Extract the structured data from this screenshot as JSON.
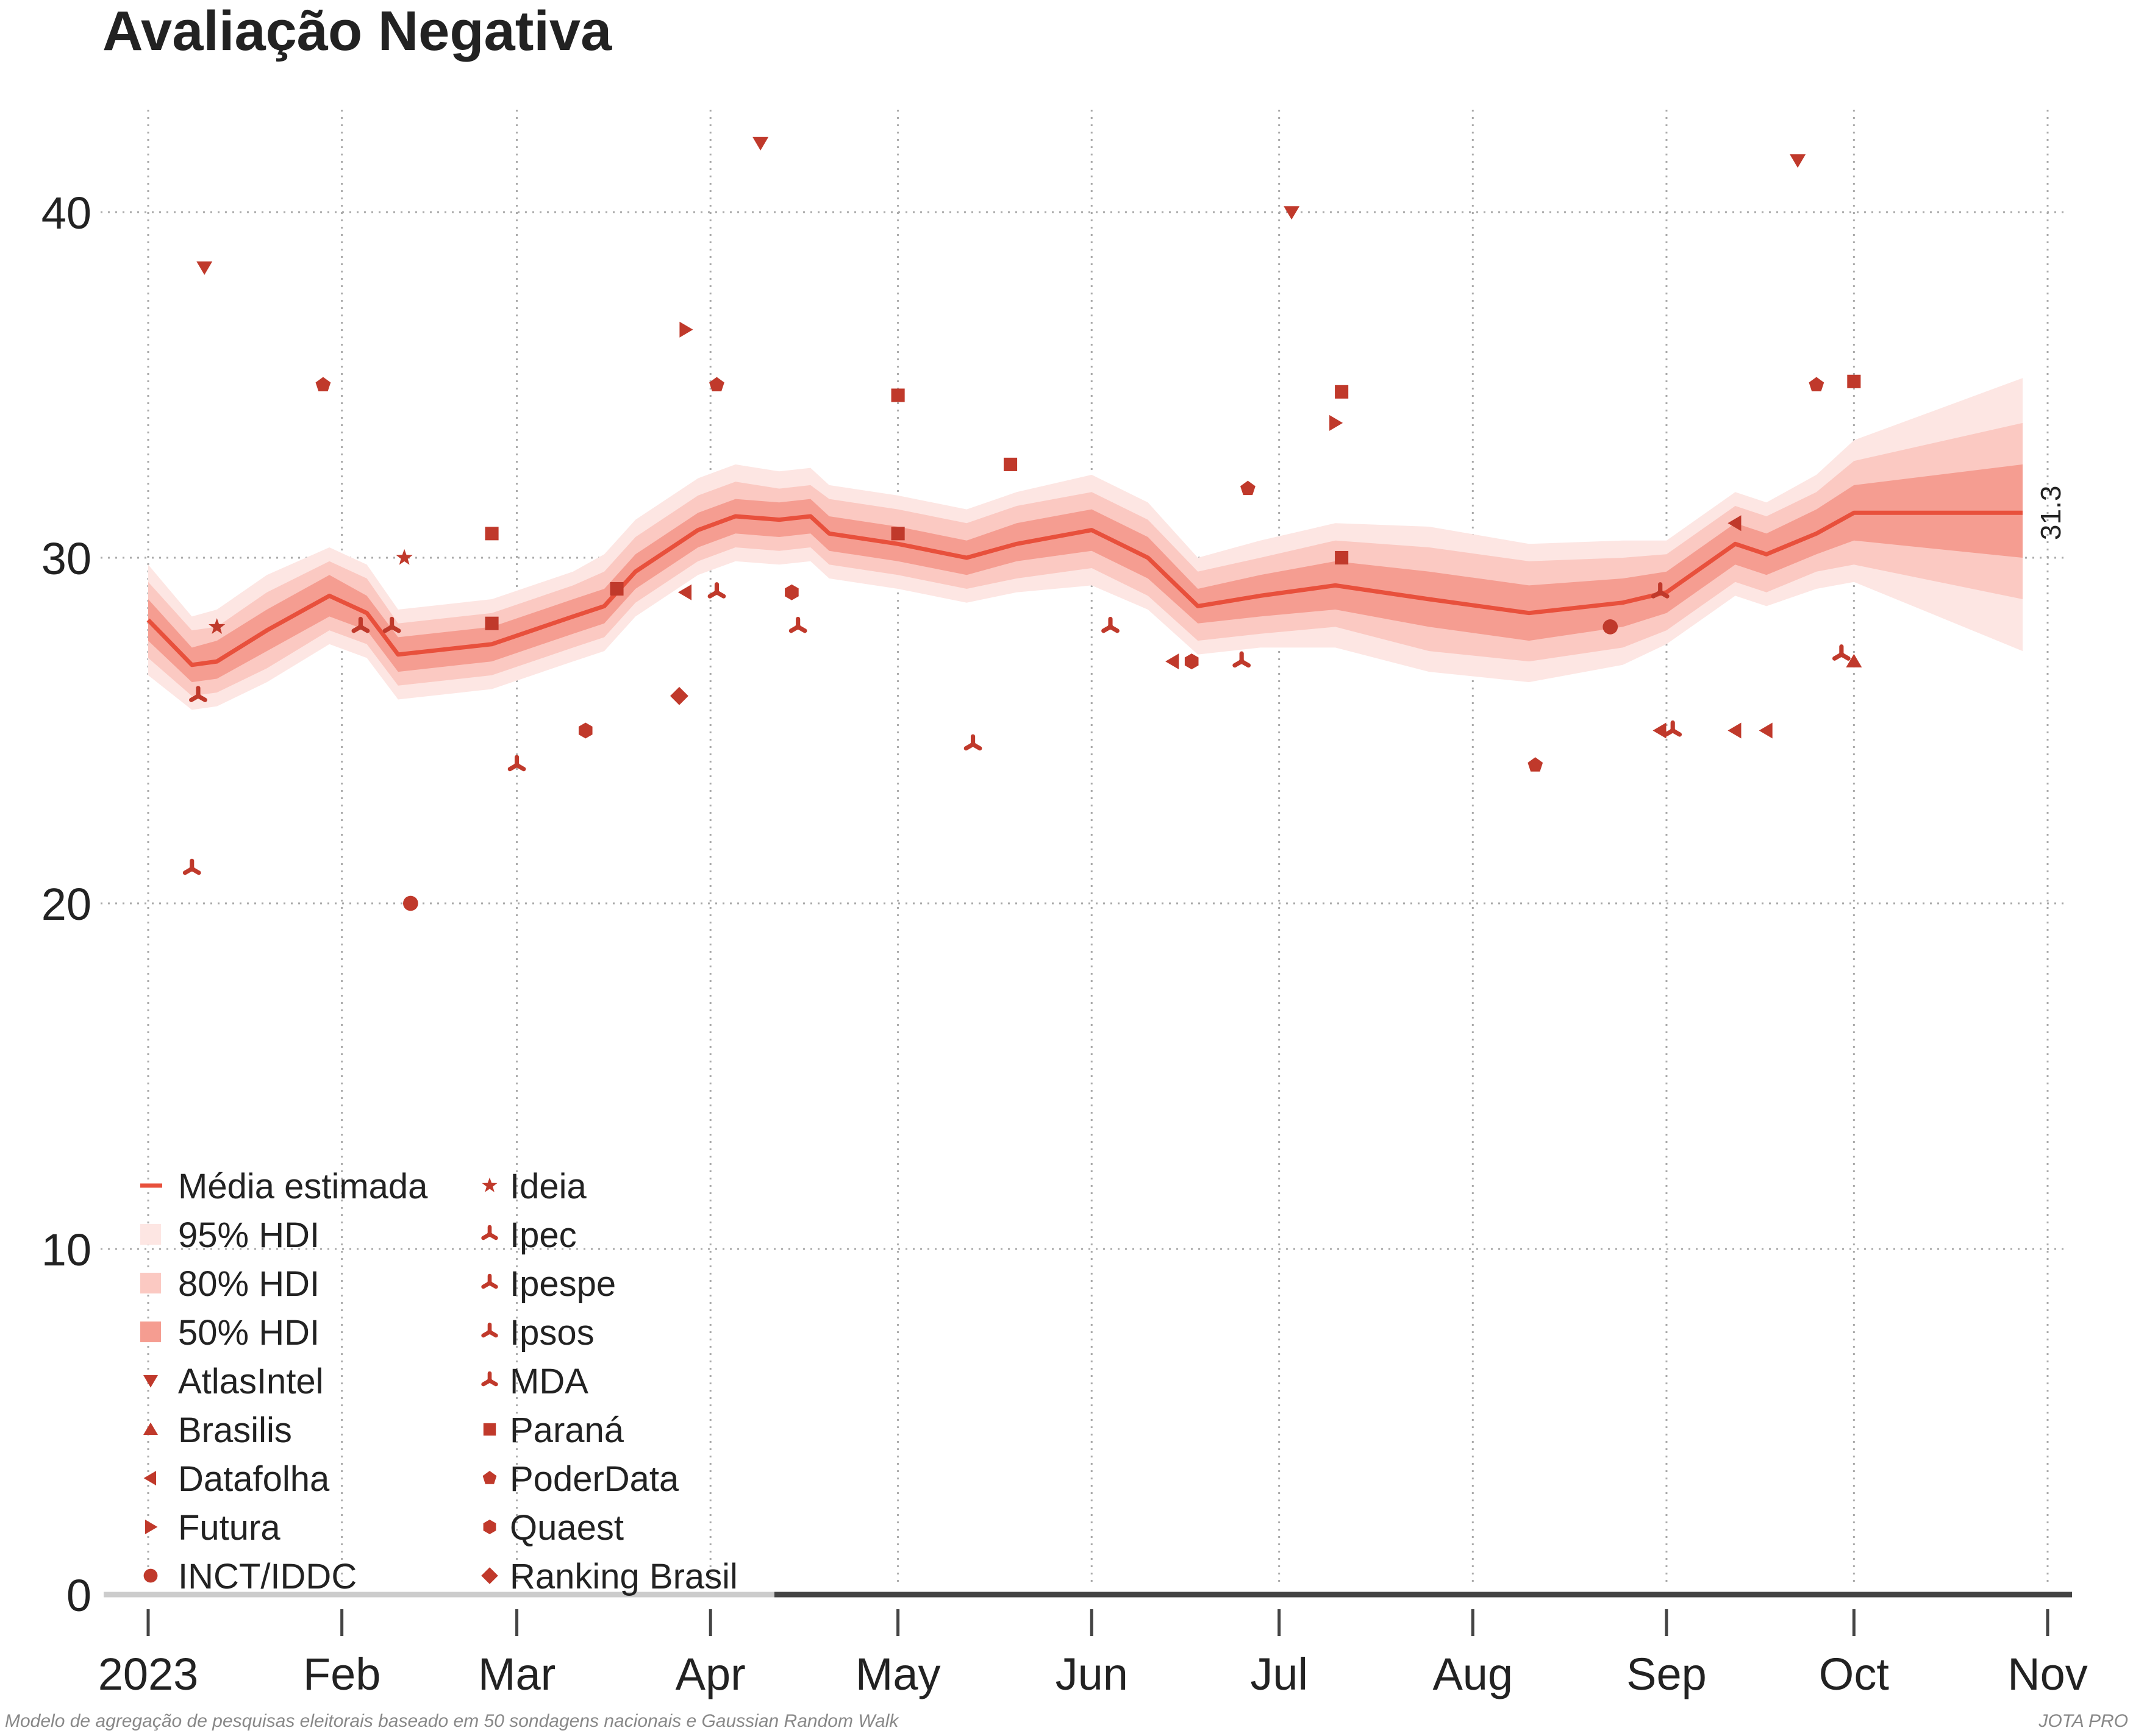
{
  "chart_data": {
    "type": "line",
    "title": "Avaliação Negativa",
    "xlabel": "",
    "ylabel": "",
    "x_axis": {
      "type": "date",
      "range": [
        "2023-01-01",
        "2023-11-01"
      ],
      "ticks": [
        {
          "date": "2023-01-01",
          "label": "2023"
        },
        {
          "date": "2023-02-01",
          "label": "Feb"
        },
        {
          "date": "2023-03-01",
          "label": "Mar"
        },
        {
          "date": "2023-04-01",
          "label": "Apr"
        },
        {
          "date": "2023-05-01",
          "label": "May"
        },
        {
          "date": "2023-06-01",
          "label": "Jun"
        },
        {
          "date": "2023-07-01",
          "label": "Jul"
        },
        {
          "date": "2023-08-01",
          "label": "Aug"
        },
        {
          "date": "2023-09-01",
          "label": "Sep"
        },
        {
          "date": "2023-10-01",
          "label": "Oct"
        },
        {
          "date": "2023-11-01",
          "label": "Nov"
        }
      ]
    },
    "y_axis": {
      "range": [
        0,
        43.5
      ],
      "ticks": [
        {
          "value": 0,
          "label": "0"
        },
        {
          "value": 10,
          "label": "10"
        },
        {
          "value": 20,
          "label": "20"
        },
        {
          "value": 30,
          "label": "30"
        },
        {
          "value": 40,
          "label": "40"
        }
      ]
    },
    "grid": true,
    "legend_placement": "bottom-left",
    "colors": {
      "mean": "#e8503c",
      "band95": "#fde6e3",
      "band80": "#fbc9c2",
      "band50": "#f59d91",
      "points": "#c0392b",
      "axis": "#444444",
      "axis_light": "#cccccc"
    },
    "series": [
      {
        "name": "Média estimada",
        "kind": "line",
        "points": [
          {
            "date": "2023-01-01",
            "y": 28.2,
            "hdi50": [
              27.6,
              28.8
            ],
            "hdi80": [
              27.1,
              29.3
            ],
            "hdi95": [
              26.6,
              29.8
            ]
          },
          {
            "date": "2023-01-08",
            "y": 26.9,
            "hdi50": [
              26.4,
              27.4
            ],
            "hdi80": [
              26.0,
              27.9
            ],
            "hdi95": [
              25.6,
              28.3
            ]
          },
          {
            "date": "2023-01-12",
            "y": 27.0,
            "hdi50": [
              26.5,
              27.6
            ],
            "hdi80": [
              26.1,
              28.0
            ],
            "hdi95": [
              25.7,
              28.5
            ]
          },
          {
            "date": "2023-01-20",
            "y": 27.9,
            "hdi50": [
              27.3,
              28.5
            ],
            "hdi80": [
              26.8,
              29.0
            ],
            "hdi95": [
              26.4,
              29.5
            ]
          },
          {
            "date": "2023-01-30",
            "y": 28.9,
            "hdi50": [
              28.3,
              29.5
            ],
            "hdi80": [
              27.9,
              29.9
            ],
            "hdi95": [
              27.5,
              30.3
            ]
          },
          {
            "date": "2023-02-05",
            "y": 28.4,
            "hdi50": [
              27.9,
              28.9
            ],
            "hdi80": [
              27.5,
              29.4
            ],
            "hdi95": [
              27.1,
              29.8
            ]
          },
          {
            "date": "2023-02-10",
            "y": 27.2,
            "hdi50": [
              26.7,
              27.7
            ],
            "hdi80": [
              26.3,
              28.1
            ],
            "hdi95": [
              25.9,
              28.5
            ]
          },
          {
            "date": "2023-02-25",
            "y": 27.5,
            "hdi50": [
              27.0,
              28.0
            ],
            "hdi80": [
              26.6,
              28.4
            ],
            "hdi95": [
              26.2,
              28.8
            ]
          },
          {
            "date": "2023-03-10",
            "y": 28.3,
            "hdi50": [
              27.8,
              28.8
            ],
            "hdi80": [
              27.4,
              29.2
            ],
            "hdi95": [
              27.0,
              29.6
            ]
          },
          {
            "date": "2023-03-15",
            "y": 28.6,
            "hdi50": [
              28.1,
              29.1
            ],
            "hdi80": [
              27.7,
              29.6
            ],
            "hdi95": [
              27.3,
              30.1
            ]
          },
          {
            "date": "2023-03-20",
            "y": 29.6,
            "hdi50": [
              29.1,
              30.1
            ],
            "hdi80": [
              28.7,
              30.6
            ],
            "hdi95": [
              28.3,
              31.1
            ]
          },
          {
            "date": "2023-03-30",
            "y": 30.8,
            "hdi50": [
              30.3,
              31.3
            ],
            "hdi80": [
              29.9,
              31.8
            ],
            "hdi95": [
              29.5,
              32.3
            ]
          },
          {
            "date": "2023-04-05",
            "y": 31.2,
            "hdi50": [
              30.7,
              31.7
            ],
            "hdi80": [
              30.3,
              32.2
            ],
            "hdi95": [
              29.9,
              32.7
            ]
          },
          {
            "date": "2023-04-12",
            "y": 31.1,
            "hdi50": [
              30.6,
              31.6
            ],
            "hdi80": [
              30.2,
              32.0
            ],
            "hdi95": [
              29.8,
              32.5
            ]
          },
          {
            "date": "2023-04-17",
            "y": 31.2,
            "hdi50": [
              30.7,
              31.7
            ],
            "hdi80": [
              30.3,
              32.1
            ],
            "hdi95": [
              29.9,
              32.6
            ]
          },
          {
            "date": "2023-04-20",
            "y": 30.7,
            "hdi50": [
              30.2,
              31.2
            ],
            "hdi80": [
              29.8,
              31.7
            ],
            "hdi95": [
              29.4,
              32.1
            ]
          },
          {
            "date": "2023-05-01",
            "y": 30.4,
            "hdi50": [
              29.9,
              30.9
            ],
            "hdi80": [
              29.5,
              31.4
            ],
            "hdi95": [
              29.1,
              31.8
            ]
          },
          {
            "date": "2023-05-12",
            "y": 30.0,
            "hdi50": [
              29.5,
              30.5
            ],
            "hdi80": [
              29.1,
              31.0
            ],
            "hdi95": [
              28.7,
              31.4
            ]
          },
          {
            "date": "2023-05-20",
            "y": 30.4,
            "hdi50": [
              29.9,
              31.0
            ],
            "hdi80": [
              29.4,
              31.5
            ],
            "hdi95": [
              29.0,
              31.9
            ]
          },
          {
            "date": "2023-06-01",
            "y": 30.8,
            "hdi50": [
              30.2,
              31.4
            ],
            "hdi80": [
              29.7,
              31.9
            ],
            "hdi95": [
              29.2,
              32.4
            ]
          },
          {
            "date": "2023-06-10",
            "y": 30.0,
            "hdi50": [
              29.4,
              30.6
            ],
            "hdi80": [
              28.9,
              31.1
            ],
            "hdi95": [
              28.5,
              31.6
            ]
          },
          {
            "date": "2023-06-18",
            "y": 28.6,
            "hdi50": [
              28.1,
              29.1
            ],
            "hdi80": [
              27.6,
              29.6
            ],
            "hdi95": [
              27.2,
              30.0
            ]
          },
          {
            "date": "2023-06-28",
            "y": 28.9,
            "hdi50": [
              28.3,
              29.5
            ],
            "hdi80": [
              27.8,
              30.0
            ],
            "hdi95": [
              27.4,
              30.5
            ]
          },
          {
            "date": "2023-07-10",
            "y": 29.2,
            "hdi50": [
              28.5,
              29.9
            ],
            "hdi80": [
              28.0,
              30.5
            ],
            "hdi95": [
              27.4,
              31.0
            ]
          },
          {
            "date": "2023-07-25",
            "y": 28.8,
            "hdi50": [
              28.0,
              29.6
            ],
            "hdi80": [
              27.3,
              30.3
            ],
            "hdi95": [
              26.7,
              30.9
            ]
          },
          {
            "date": "2023-08-10",
            "y": 28.4,
            "hdi50": [
              27.6,
              29.2
            ],
            "hdi80": [
              27.0,
              29.9
            ],
            "hdi95": [
              26.4,
              30.4
            ]
          },
          {
            "date": "2023-08-25",
            "y": 28.7,
            "hdi50": [
              28.0,
              29.4
            ],
            "hdi80": [
              27.4,
              30.0
            ],
            "hdi95": [
              26.9,
              30.5
            ]
          },
          {
            "date": "2023-09-01",
            "y": 29.0,
            "hdi50": [
              28.4,
              29.6
            ],
            "hdi80": [
              27.9,
              30.1
            ],
            "hdi95": [
              27.5,
              30.5
            ]
          },
          {
            "date": "2023-09-12",
            "y": 30.4,
            "hdi50": [
              29.8,
              31.0
            ],
            "hdi80": [
              29.3,
              31.5
            ],
            "hdi95": [
              28.9,
              31.9
            ]
          },
          {
            "date": "2023-09-17",
            "y": 30.1,
            "hdi50": [
              29.5,
              30.7
            ],
            "hdi80": [
              29.0,
              31.2
            ],
            "hdi95": [
              28.6,
              31.6
            ]
          },
          {
            "date": "2023-09-25",
            "y": 30.7,
            "hdi50": [
              30.1,
              31.4
            ],
            "hdi80": [
              29.6,
              31.9
            ],
            "hdi95": [
              29.1,
              32.4
            ]
          },
          {
            "date": "2023-10-01",
            "y": 31.3,
            "hdi50": [
              30.5,
              32.1
            ],
            "hdi80": [
              29.8,
              32.8
            ],
            "hdi95": [
              29.3,
              33.4
            ]
          },
          {
            "date": "2023-10-28",
            "y": 31.3,
            "hdi50": [
              30.0,
              32.7
            ],
            "hdi80": [
              28.8,
              33.9
            ],
            "hdi95": [
              27.3,
              35.2
            ]
          }
        ],
        "end_label": "31.3"
      },
      {
        "name": "95% HDI",
        "kind": "band"
      },
      {
        "name": "80% HDI",
        "kind": "band"
      },
      {
        "name": "50% HDI",
        "kind": "band"
      },
      {
        "name": "AtlasIntel",
        "marker": "tri-down",
        "points": [
          {
            "date": "2023-01-10",
            "y": 38.4
          },
          {
            "date": "2023-04-09",
            "y": 42.0
          },
          {
            "date": "2023-07-03",
            "y": 40.0
          },
          {
            "date": "2023-09-22",
            "y": 41.5
          }
        ]
      },
      {
        "name": "Brasilis",
        "marker": "tri-up",
        "points": [
          {
            "date": "2023-10-01",
            "y": 27.0
          }
        ]
      },
      {
        "name": "Datafolha",
        "marker": "tri-left",
        "points": [
          {
            "date": "2023-03-28",
            "y": 29.0
          },
          {
            "date": "2023-06-14",
            "y": 27.0
          },
          {
            "date": "2023-08-31",
            "y": 25.0
          },
          {
            "date": "2023-09-12",
            "y": 31.0
          },
          {
            "date": "2023-09-12",
            "y": 25.0
          },
          {
            "date": "2023-09-17",
            "y": 25.0
          }
        ]
      },
      {
        "name": "Futura",
        "marker": "tri-right",
        "points": [
          {
            "date": "2023-03-28",
            "y": 36.6
          },
          {
            "date": "2023-07-10",
            "y": 33.9
          }
        ]
      },
      {
        "name": "INCT/IDDC",
        "marker": "circle",
        "points": [
          {
            "date": "2023-02-12",
            "y": 20.0
          },
          {
            "date": "2023-08-23",
            "y": 28.0
          }
        ]
      },
      {
        "name": "Ideia",
        "marker": "star",
        "points": [
          {
            "date": "2023-01-12",
            "y": 28.0
          },
          {
            "date": "2023-02-11",
            "y": 30.0
          }
        ]
      },
      {
        "name": "Ipec",
        "marker": "tri-star",
        "points": [
          {
            "date": "2023-02-04",
            "y": 28.0
          },
          {
            "date": "2023-03-01",
            "y": 24.0
          },
          {
            "date": "2023-04-02",
            "y": 29.0
          },
          {
            "date": "2023-06-04",
            "y": 28.0
          },
          {
            "date": "2023-09-02",
            "y": 25.0
          }
        ]
      },
      {
        "name": "Ipespe",
        "marker": "tri-star",
        "points": [
          {
            "date": "2023-01-08",
            "y": 21.0
          },
          {
            "date": "2023-02-09",
            "y": 28.0
          },
          {
            "date": "2023-04-15",
            "y": 28.0
          },
          {
            "date": "2023-06-25",
            "y": 27.0
          }
        ]
      },
      {
        "name": "Ipsos",
        "marker": "tri-star",
        "points": [
          {
            "date": "2023-01-09",
            "y": 26.0
          },
          {
            "date": "2023-08-31",
            "y": 29.0
          }
        ]
      },
      {
        "name": "MDA",
        "marker": "tri-star",
        "points": [
          {
            "date": "2023-05-13",
            "y": 24.6
          },
          {
            "date": "2023-09-29",
            "y": 27.2
          }
        ]
      },
      {
        "name": "Paraná",
        "marker": "square",
        "points": [
          {
            "date": "2023-02-25",
            "y": 30.7
          },
          {
            "date": "2023-02-25",
            "y": 28.1
          },
          {
            "date": "2023-03-17",
            "y": 29.1
          },
          {
            "date": "2023-05-01",
            "y": 34.7
          },
          {
            "date": "2023-05-01",
            "y": 30.7
          },
          {
            "date": "2023-05-19",
            "y": 32.7
          },
          {
            "date": "2023-07-11",
            "y": 34.8
          },
          {
            "date": "2023-07-11",
            "y": 30.0
          },
          {
            "date": "2023-10-01",
            "y": 35.1
          }
        ]
      },
      {
        "name": "PoderData",
        "marker": "pentagon",
        "points": [
          {
            "date": "2023-01-29",
            "y": 35.0
          },
          {
            "date": "2023-04-02",
            "y": 35.0
          },
          {
            "date": "2023-06-26",
            "y": 32.0
          },
          {
            "date": "2023-08-11",
            "y": 24.0
          },
          {
            "date": "2023-09-25",
            "y": 35.0
          }
        ]
      },
      {
        "name": "Quaest",
        "marker": "hexagon",
        "points": [
          {
            "date": "2023-03-12",
            "y": 25.0
          },
          {
            "date": "2023-04-14",
            "y": 29.0
          },
          {
            "date": "2023-06-17",
            "y": 27.0
          }
        ]
      },
      {
        "name": "Ranking Brasil",
        "marker": "diamond",
        "points": [
          {
            "date": "2023-03-27",
            "y": 26.0
          }
        ]
      }
    ],
    "footer_left": "Modelo de agregação de pesquisas eleitorais baseado em 50 sondagens nacionais e Gaussian Random Walk",
    "footer_right": "JOTA PRO"
  }
}
